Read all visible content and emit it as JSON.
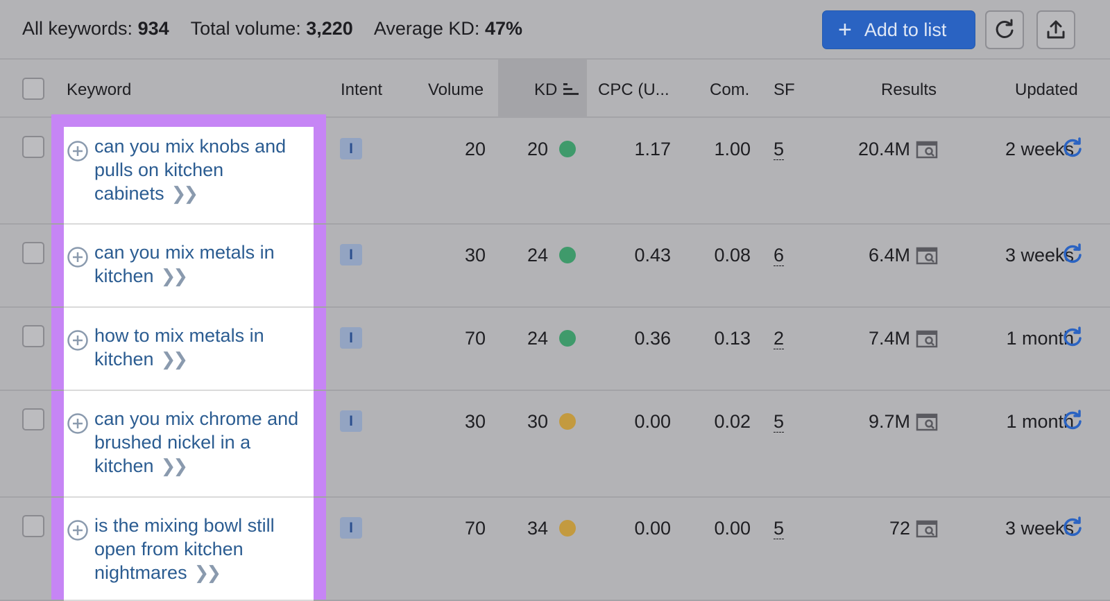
{
  "summary": {
    "all_keywords_label": "All keywords:",
    "all_keywords_value": "934",
    "total_volume_label": "Total volume:",
    "total_volume_value": "3,220",
    "avg_kd_label": "Average KD:",
    "avg_kd_value": "47%"
  },
  "toolbar": {
    "add_to_list_label": "Add to list",
    "refresh_icon": "refresh-icon",
    "export_icon": "export-icon"
  },
  "columns": {
    "keyword": "Keyword",
    "intent": "Intent",
    "volume": "Volume",
    "kd": "KD",
    "cpc": "CPC (U...",
    "com": "Com.",
    "sf": "SF",
    "results": "Results",
    "updated": "Updated"
  },
  "colors": {
    "accent": "#2a63c2",
    "highlight": "#c685f5",
    "kd_green": "#3f9a6b",
    "kd_yellow": "#c39a3f"
  },
  "rows": [
    {
      "keyword": "can you mix knobs and pulls on kitchen cabinets",
      "intent": "I",
      "volume": "20",
      "kd": "20",
      "kd_color": "green",
      "cpc": "1.17",
      "com": "1.00",
      "sf": "5",
      "results": "20.4M",
      "updated": "2 weeks"
    },
    {
      "keyword": "can you mix metals in kitchen",
      "intent": "I",
      "volume": "30",
      "kd": "24",
      "kd_color": "green",
      "cpc": "0.43",
      "com": "0.08",
      "sf": "6",
      "results": "6.4M",
      "updated": "3 weeks"
    },
    {
      "keyword": "how to mix metals in kitchen",
      "intent": "I",
      "volume": "70",
      "kd": "24",
      "kd_color": "green",
      "cpc": "0.36",
      "com": "0.13",
      "sf": "2",
      "results": "7.4M",
      "updated": "1 month"
    },
    {
      "keyword": "can you mix chrome and brushed nickel in a kitchen",
      "intent": "I",
      "volume": "30",
      "kd": "30",
      "kd_color": "yellow",
      "cpc": "0.00",
      "com": "0.02",
      "sf": "5",
      "results": "9.7M",
      "updated": "1 month"
    },
    {
      "keyword": "is the mixing bowl still open from kitchen nightmares",
      "intent": "I",
      "volume": "70",
      "kd": "34",
      "kd_color": "yellow",
      "cpc": "0.00",
      "com": "0.00",
      "sf": "5",
      "results": "72",
      "updated": "3 weeks"
    }
  ]
}
